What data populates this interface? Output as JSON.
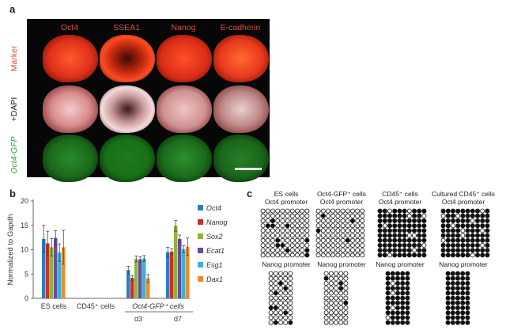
{
  "panel_a": {
    "label": "a",
    "columns": [
      "Oct4",
      "SSEA1",
      "Nanog",
      "E-cadherin"
    ],
    "rows": [
      "Marker",
      "+DAPI",
      "Oct4-GFP"
    ]
  },
  "panel_b": {
    "label": "b",
    "ylabel": "Normalized to Gapdh",
    "yticks": [
      "0",
      "5",
      "10",
      "15",
      "20"
    ],
    "xgroups": [
      "ES cells",
      "CD45⁺ cells",
      "Oct4-GFP⁺ cells"
    ],
    "xsub": [
      "d3",
      "d7"
    ],
    "legend": [
      "Oct4",
      "Nanog",
      "Sox2",
      "Ecat1",
      "Esg1",
      "Dax1"
    ],
    "colors": [
      "#2a7fc0",
      "#c8302b",
      "#8db43a",
      "#6a4a9a",
      "#33b5d8",
      "#ef8b2a"
    ]
  },
  "chart_data": {
    "type": "bar",
    "categories": [
      "ES cells",
      "CD45⁺ cells",
      "d3",
      "d7"
    ],
    "ylabel": "Normalized to Gapdh",
    "ylim": [
      0,
      20
    ],
    "series": [
      {
        "name": "Oct4",
        "values": [
          12.2,
          0,
          5.8,
          9.5
        ],
        "errors": [
          2.8,
          0,
          0.8,
          1.0
        ]
      },
      {
        "name": "Nanog",
        "values": [
          11.3,
          0,
          4.2,
          9.6
        ],
        "errors": [
          2.5,
          0,
          0.5,
          0.6
        ]
      },
      {
        "name": "Sox2",
        "values": [
          10.5,
          0,
          8.1,
          14.9
        ],
        "errors": [
          1.8,
          0,
          0.6,
          1.1
        ]
      },
      {
        "name": "Ecat1",
        "values": [
          12.4,
          0,
          8.0,
          12.2
        ],
        "errors": [
          1.5,
          0,
          0.6,
          0.8
        ]
      },
      {
        "name": "Esg1",
        "values": [
          9.4,
          0,
          8.2,
          10.1
        ],
        "errors": [
          1.8,
          0,
          0.6,
          0.7
        ]
      },
      {
        "name": "Dax1",
        "values": [
          10.5,
          0,
          4.1,
          10.6
        ],
        "errors": [
          3.5,
          0,
          0.8,
          1.8
        ]
      }
    ]
  },
  "panel_c": {
    "label": "c",
    "titles": [
      "ES cells",
      "Oct4-GFP⁺ cells",
      "CD45⁺ cells",
      "Cultured CD45⁺ cells"
    ],
    "oct4_promoter": "Oct4 promoter",
    "nanog_promoter": "Nanog promoter"
  }
}
